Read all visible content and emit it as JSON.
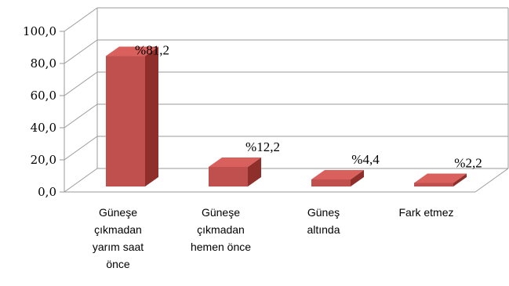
{
  "chart_data": {
    "type": "bar",
    "style": "3d-column",
    "categories": [
      [
        "Güneşe",
        "çıkmadan",
        "yarım saat",
        "önce"
      ],
      [
        "Güneşe",
        "çıkmadan",
        "hemen önce"
      ],
      [
        "Güneş",
        "altında"
      ],
      [
        "Fark etmez"
      ]
    ],
    "values": [
      81.2,
      12.2,
      4.4,
      2.2
    ],
    "data_labels": [
      "%81,2",
      "%12,2",
      "%4,4",
      "%2,2"
    ],
    "ylim": [
      0,
      100
    ],
    "yticks": [
      "0,0",
      "20,0",
      "40,0",
      "60,0",
      "80,0",
      "100,0"
    ],
    "grid": true,
    "legend": "none",
    "colors": {
      "bar_front": "#c0504d",
      "bar_top": "#d9605c",
      "bar_side": "#8e2f2b",
      "grid": "#9a9a9a"
    }
  }
}
